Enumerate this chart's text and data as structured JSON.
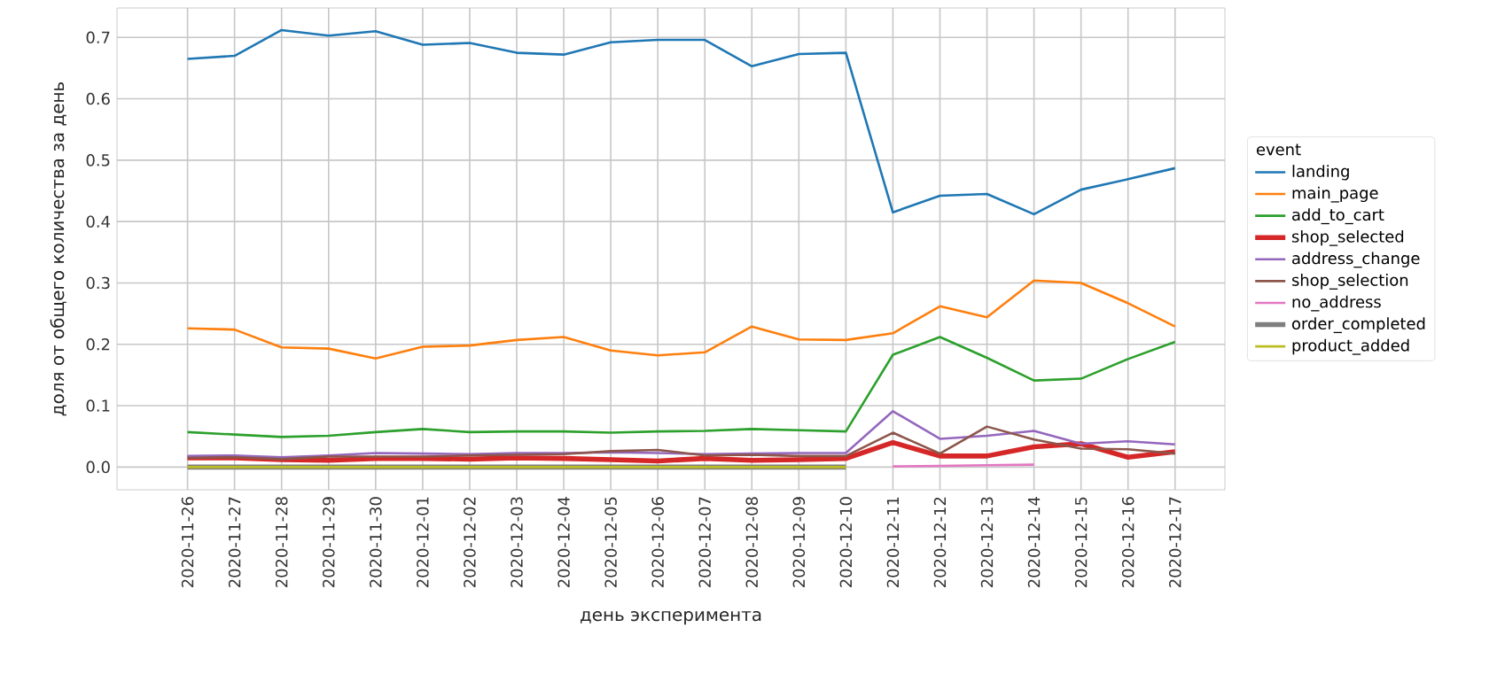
{
  "chart_data": {
    "type": "line",
    "xlabel": "день эксперимента",
    "ylabel": "доля от общего количества за день",
    "legend_title": "event",
    "legend": "right",
    "grid": true,
    "line_style": "solid",
    "marker": "none",
    "categories": [
      "2020-11-26",
      "2020-11-27",
      "2020-11-28",
      "2020-11-29",
      "2020-11-30",
      "2020-12-01",
      "2020-12-02",
      "2020-12-03",
      "2020-12-04",
      "2020-12-05",
      "2020-12-06",
      "2020-12-07",
      "2020-12-08",
      "2020-12-09",
      "2020-12-10",
      "2020-12-11",
      "2020-12-12",
      "2020-12-13",
      "2020-12-14",
      "2020-12-15",
      "2020-12-16",
      "2020-12-17"
    ],
    "ylim": [
      -0.037,
      0.748
    ],
    "yticks": [
      {
        "value": 0,
        "label": "0.0"
      },
      0.1,
      0.2,
      0.3,
      0.4,
      0.5,
      0.6,
      0.7
    ],
    "series": [
      {
        "name": "landing",
        "color": "#1f77b4",
        "values": [
          0.665,
          0.67,
          0.712,
          0.703,
          0.71,
          0.688,
          0.691,
          0.675,
          0.672,
          0.692,
          0.696,
          0.696,
          0.653,
          0.673,
          0.675,
          0.415,
          0.442,
          0.445,
          0.412,
          0.452,
          0.469,
          0.487
        ]
      },
      {
        "name": "main_page",
        "color": "#ff7f0e",
        "values": [
          0.226,
          0.224,
          0.195,
          0.193,
          0.177,
          0.196,
          0.198,
          0.207,
          0.212,
          0.19,
          0.182,
          0.187,
          0.229,
          0.208,
          0.207,
          0.218,
          0.262,
          0.244,
          0.304,
          0.3,
          0.267,
          0.229
        ]
      },
      {
        "name": "add_to_cart",
        "color": "#2ca02c",
        "values": [
          0.057,
          0.053,
          0.049,
          0.051,
          0.057,
          0.062,
          0.057,
          0.058,
          0.058,
          0.056,
          0.058,
          0.059,
          0.062,
          0.06,
          0.058,
          0.183,
          0.212,
          0.178,
          0.141,
          0.144,
          0.176,
          0.204
        ]
      },
      {
        "name": "shop_selected",
        "color": "#d62728",
        "values": [
          0.015,
          0.015,
          0.012,
          0.011,
          0.014,
          0.014,
          0.013,
          0.015,
          0.014,
          0.012,
          0.01,
          0.014,
          0.011,
          0.012,
          0.014,
          0.04,
          0.018,
          0.018,
          0.033,
          0.038,
          0.016,
          0.025
        ]
      },
      {
        "name": "address_change",
        "color": "#9467bd",
        "values": [
          0.018,
          0.019,
          0.016,
          0.019,
          0.023,
          0.022,
          0.021,
          0.023,
          0.023,
          0.024,
          0.023,
          0.021,
          0.022,
          0.023,
          0.023,
          0.091,
          0.046,
          0.051,
          0.059,
          0.038,
          0.042,
          0.037
        ]
      },
      {
        "name": "shop_selection",
        "color": "#8c564b",
        "values": [
          0.015,
          0.016,
          0.013,
          0.017,
          0.017,
          0.017,
          0.019,
          0.02,
          0.021,
          0.026,
          0.028,
          0.019,
          0.02,
          0.018,
          0.018,
          0.056,
          0.022,
          0.066,
          0.045,
          0.03,
          0.029,
          0.022
        ]
      },
      {
        "name": "no_address",
        "color": "#e377c2",
        "values": [
          null,
          null,
          null,
          null,
          null,
          null,
          null,
          null,
          null,
          null,
          null,
          null,
          null,
          null,
          null,
          0.001,
          0.002,
          0.003,
          0.004,
          null,
          null,
          null
        ]
      },
      {
        "name": "order_completed",
        "color": "#7f7f7f",
        "values": [
          0,
          0,
          0,
          0,
          0,
          0,
          0,
          0,
          0,
          0,
          0,
          0,
          0,
          0,
          0,
          null,
          null,
          null,
          null,
          null,
          null,
          null
        ]
      },
      {
        "name": "product_added",
        "color": "#bcbd22",
        "values": [
          0,
          0,
          0,
          0,
          0,
          0,
          0,
          0,
          0,
          0,
          0,
          0,
          0,
          0,
          0,
          null,
          null,
          null,
          null,
          null,
          null,
          null
        ]
      }
    ]
  }
}
